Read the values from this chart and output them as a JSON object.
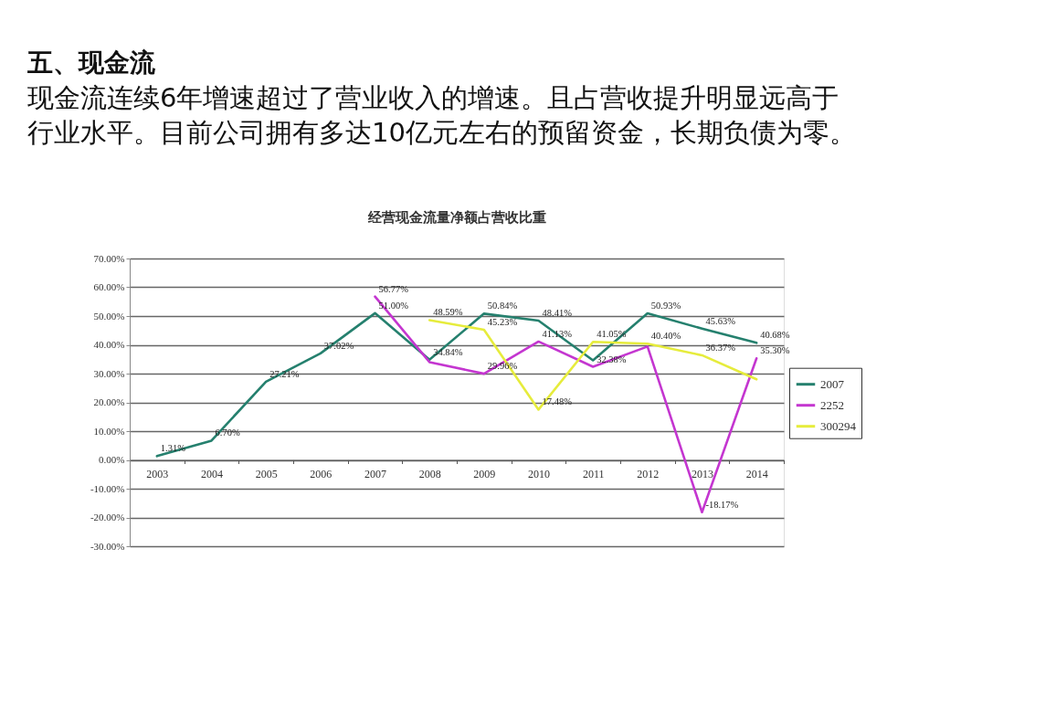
{
  "chart_data": {
    "type": "line",
    "title": "经营现金流量净额占营收比重",
    "annotations": [
      "五、现金流",
      "现金流连续6年增速超过了营业收入的增速。且占营收提升明显远高于行业水平。目前公司拥有多达10亿元左右的预留资金，长期负债为零。"
    ],
    "categories": [
      "2003",
      "2004",
      "2005",
      "2006",
      "2007",
      "2008",
      "2009",
      "2010",
      "2011",
      "2012",
      "2013",
      "2014"
    ],
    "series": [
      {
        "name": "2007",
        "color": "#25806e",
        "values": [
          1.31,
          6.7,
          27.21,
          37.02,
          51.0,
          34.84,
          50.84,
          48.41,
          34.6,
          50.93,
          45.63,
          40.68
        ],
        "value_labels": [
          "1.31%",
          "6.70%",
          "27.21%",
          "37.02%",
          "51.00%",
          "34.84%",
          "50.84%",
          "48.41%",
          null,
          "50.93%",
          "45.63%",
          "40.68%"
        ]
      },
      {
        "name": "2252",
        "color": "#c436d0",
        "values": [
          null,
          null,
          null,
          null,
          56.77,
          34.0,
          29.96,
          41.13,
          32.38,
          39.4,
          -18.17,
          35.3
        ],
        "value_labels": [
          null,
          null,
          null,
          null,
          "56.77%",
          null,
          "29.96%",
          "41.13%",
          "32.38%",
          null,
          "-18.17%",
          "35.30%"
        ]
      },
      {
        "name": "300294",
        "color": "#e6ec3c",
        "values": [
          null,
          null,
          null,
          null,
          null,
          48.59,
          45.23,
          17.48,
          41.05,
          40.4,
          36.37,
          28.0
        ],
        "value_labels": [
          null,
          null,
          null,
          null,
          null,
          "48.59%",
          "45.23%",
          "17.48%",
          "41.05%",
          "40.40%",
          "36.37%",
          null
        ]
      }
    ],
    "ylim": [
      -30,
      70
    ],
    "yticks": [
      {
        "value": 70,
        "label": "70.00%"
      },
      {
        "value": 60,
        "label": "60.00%"
      },
      {
        "value": 50,
        "label": "50.00%"
      },
      {
        "value": 40,
        "label": "40.00%"
      },
      {
        "value": 30,
        "label": "30.00%"
      },
      {
        "value": 20,
        "label": "20.00%"
      },
      {
        "value": 10,
        "label": "10.00%"
      },
      {
        "value": 0,
        "label": "0.00%"
      },
      {
        "value": -10,
        "label": "-10.00%"
      },
      {
        "value": -20,
        "label": "-20.00%"
      },
      {
        "value": -30,
        "label": "-30.00%"
      }
    ],
    "grid": "y",
    "legend": "right",
    "line_style": "solid",
    "marker": "none"
  }
}
